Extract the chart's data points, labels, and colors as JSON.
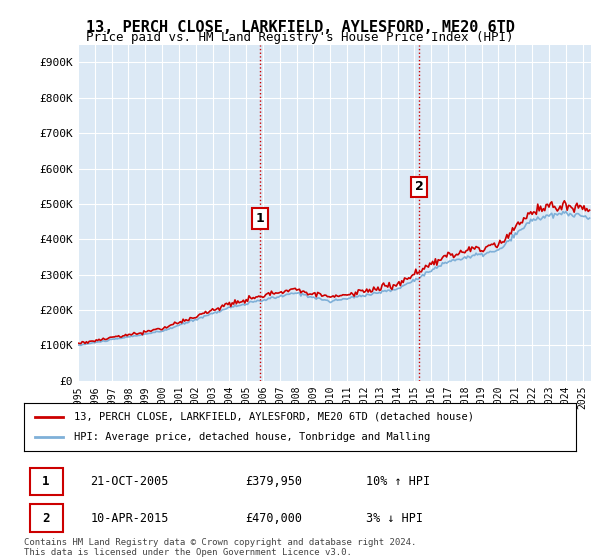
{
  "title": "13, PERCH CLOSE, LARKFIELD, AYLESFORD, ME20 6TD",
  "subtitle": "Price paid vs. HM Land Registry's House Price Index (HPI)",
  "ylabel_ticks": [
    "£0",
    "£100K",
    "£200K",
    "£300K",
    "£400K",
    "£500K",
    "£600K",
    "£700K",
    "£800K",
    "£900K"
  ],
  "ytick_values": [
    0,
    100000,
    200000,
    300000,
    400000,
    500000,
    600000,
    700000,
    800000,
    900000
  ],
  "ylim": [
    0,
    950000
  ],
  "xlim_start": 1995.0,
  "xlim_end": 2025.5,
  "background_color": "#dce9f5",
  "plot_bg_color": "#dce9f5",
  "grid_color": "#ffffff",
  "line1_color": "#cc0000",
  "line2_color": "#7fb0d8",
  "vline_color": "#cc0000",
  "vline_style": ":",
  "marker1_x": 2005.8,
  "marker1_y": 379950,
  "marker1_label": "1",
  "marker2_x": 2015.27,
  "marker2_y": 470000,
  "marker2_label": "2",
  "legend_line1": "13, PERCH CLOSE, LARKFIELD, AYLESFORD, ME20 6TD (detached house)",
  "legend_line2": "HPI: Average price, detached house, Tonbridge and Malling",
  "table_row1_num": "1",
  "table_row1_date": "21-OCT-2005",
  "table_row1_price": "£379,950",
  "table_row1_hpi": "10% ↑ HPI",
  "table_row2_num": "2",
  "table_row2_date": "10-APR-2015",
  "table_row2_price": "£470,000",
  "table_row2_hpi": "3% ↓ HPI",
  "footer": "Contains HM Land Registry data © Crown copyright and database right 2024.\nThis data is licensed under the Open Government Licence v3.0.",
  "xtick_years": [
    1995,
    1996,
    1997,
    1998,
    1999,
    2000,
    2001,
    2002,
    2003,
    2004,
    2005,
    2006,
    2007,
    2008,
    2009,
    2010,
    2011,
    2012,
    2013,
    2014,
    2015,
    2016,
    2017,
    2018,
    2019,
    2020,
    2021,
    2022,
    2023,
    2024,
    2025
  ]
}
